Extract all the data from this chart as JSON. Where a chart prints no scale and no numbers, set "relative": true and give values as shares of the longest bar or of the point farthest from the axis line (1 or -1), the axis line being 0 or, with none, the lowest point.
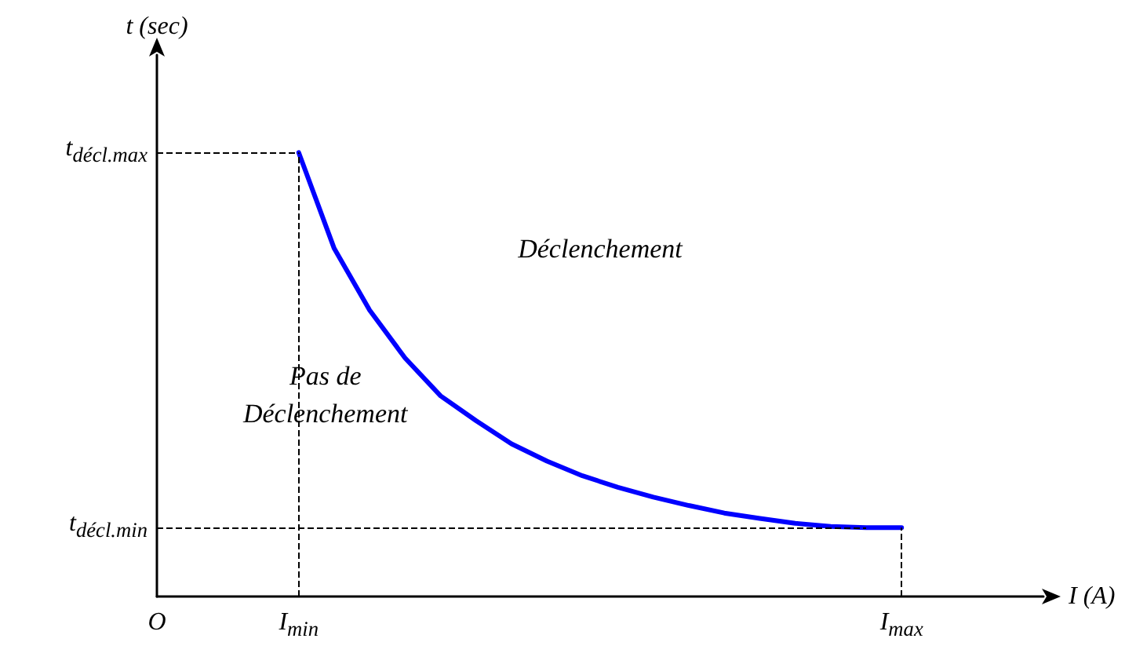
{
  "chart_data": {
    "type": "line",
    "relative": true,
    "xlabel": "I (A)",
    "ylabel": "t (sec)",
    "categories": [
      "O",
      null,
      null,
      null,
      "I$_{min}$",
      null,
      null,
      null,
      null,
      null,
      null,
      null,
      null,
      null,
      null,
      null,
      null,
      null,
      null,
      null,
      null,
      "I$_{max}$",
      null,
      null,
      null,
      null
    ],
    "series": [
      {
        "color": "#0000ff",
        "values": [
          null,
          null,
          null,
          null,
          1.0,
          0.784,
          0.645,
          0.537,
          0.452,
          0.396,
          0.344,
          0.305,
          0.272,
          0.246,
          0.224,
          0.205,
          0.188,
          0.176,
          0.165,
          0.158,
          0.155,
          0.155,
          null,
          null,
          null,
          null
        ]
      }
    ],
    "ref_lines": [
      {
        "axis": "y",
        "value": 1.0,
        "label": "t$_{décl.max}$",
        "color": "#000000",
        "line_style": "dashed"
      },
      {
        "axis": "y",
        "value": 0.155,
        "label": "t$_{décl.min}$",
        "color": "#000000",
        "line_style": "dashed"
      },
      {
        "axis": "x",
        "value": "I$_{min}$",
        "color": "#000000",
        "line_style": "dashed"
      },
      {
        "axis": "x",
        "value": "I$_{max}$",
        "color": "#000000",
        "line_style": "dashed"
      }
    ],
    "annotations": [
      "Déclenchement",
      "Pas de\nDéclenchement"
    ],
    "grid": false,
    "marker": "none",
    "line_style": "solid"
  }
}
